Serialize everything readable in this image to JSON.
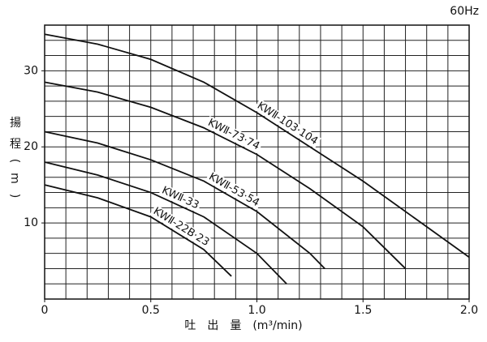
{
  "chart_data": {
    "type": "line",
    "title": "60Hz",
    "x_label": "吐　出　量　(m³/min)",
    "y_label": "揚程(m)",
    "xlim": [
      0,
      2.0
    ],
    "ylim": [
      0,
      36
    ],
    "xticks": [
      0,
      0.5,
      {
        "value": 1.0,
        "label": "1.0"
      },
      1.5,
      {
        "value": 2.0,
        "label": "2.0"
      }
    ],
    "yticks": [
      10,
      20,
      30
    ],
    "grid": true,
    "grid_x_step": 0.1,
    "grid_y_step": 2,
    "series": [
      {
        "name": "KWⅡ-103·104",
        "color": "#111111",
        "x": [
          0,
          0.25,
          0.5,
          0.75,
          1.0,
          1.25,
          1.5,
          1.75,
          2.0
        ],
        "values": [
          34.8,
          33.5,
          31.5,
          28.5,
          24.5,
          20,
          15.5,
          10.5,
          5.5
        ]
      },
      {
        "name": "KWⅡ-73·74",
        "color": "#111111",
        "x": [
          0,
          0.25,
          0.5,
          0.75,
          1.0,
          1.25,
          1.5,
          1.7
        ],
        "values": [
          28.5,
          27.2,
          25.2,
          22.5,
          19,
          14.5,
          9.5,
          4
        ]
      },
      {
        "name": "KWⅡ-53·54",
        "color": "#111111",
        "x": [
          0,
          0.25,
          0.5,
          0.75,
          1.0,
          1.25,
          1.32
        ],
        "values": [
          22,
          20.5,
          18.3,
          15.5,
          11.5,
          6,
          4
        ]
      },
      {
        "name": "KWⅡ-33",
        "color": "#111111",
        "x": [
          0,
          0.25,
          0.5,
          0.75,
          1.0,
          1.14
        ],
        "values": [
          18,
          16.3,
          14,
          10.8,
          6,
          2
        ]
      },
      {
        "name": "KWⅡ-22B·23",
        "color": "#111111",
        "x": [
          0,
          0.25,
          0.5,
          0.75,
          0.88
        ],
        "values": [
          15,
          13.3,
          10.8,
          6.5,
          3
        ]
      }
    ]
  }
}
